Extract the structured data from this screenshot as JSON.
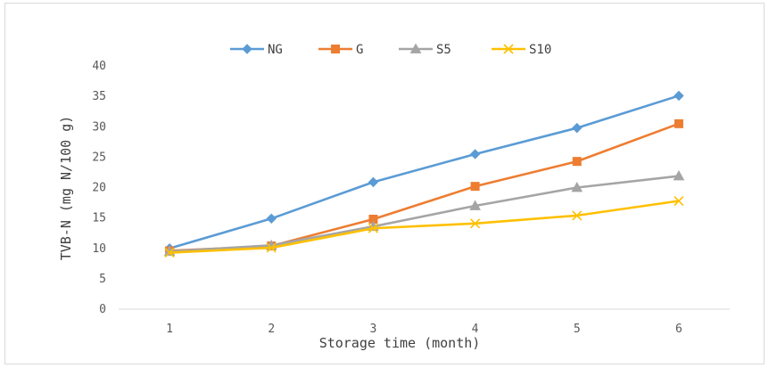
{
  "chart_data": {
    "type": "line",
    "title": "",
    "xlabel": "Storage time (month)",
    "ylabel": "TVB-N (mg N/100 g)",
    "categories": [
      "1",
      "2",
      "3",
      "4",
      "5",
      "6"
    ],
    "ylim": [
      0,
      40
    ],
    "yticks": [
      0,
      5,
      10,
      15,
      20,
      25,
      30,
      35,
      40
    ],
    "grid": false,
    "legend_position": "top",
    "series": [
      {
        "name": "NG",
        "color": "#5B9BD5",
        "marker": "diamond",
        "values": [
          10.0,
          14.9,
          20.9,
          25.5,
          29.8,
          35.1
        ]
      },
      {
        "name": "G",
        "color": "#ED7D31",
        "marker": "square",
        "values": [
          9.6,
          10.4,
          14.8,
          20.2,
          24.3,
          30.5
        ]
      },
      {
        "name": "S5",
        "color": "#A5A5A5",
        "marker": "triangle",
        "values": [
          9.5,
          10.5,
          13.6,
          17.0,
          20.0,
          21.9
        ]
      },
      {
        "name": "S10",
        "color": "#FFC000",
        "marker": "x",
        "values": [
          9.3,
          10.1,
          13.3,
          14.1,
          15.4,
          17.8
        ]
      }
    ]
  }
}
